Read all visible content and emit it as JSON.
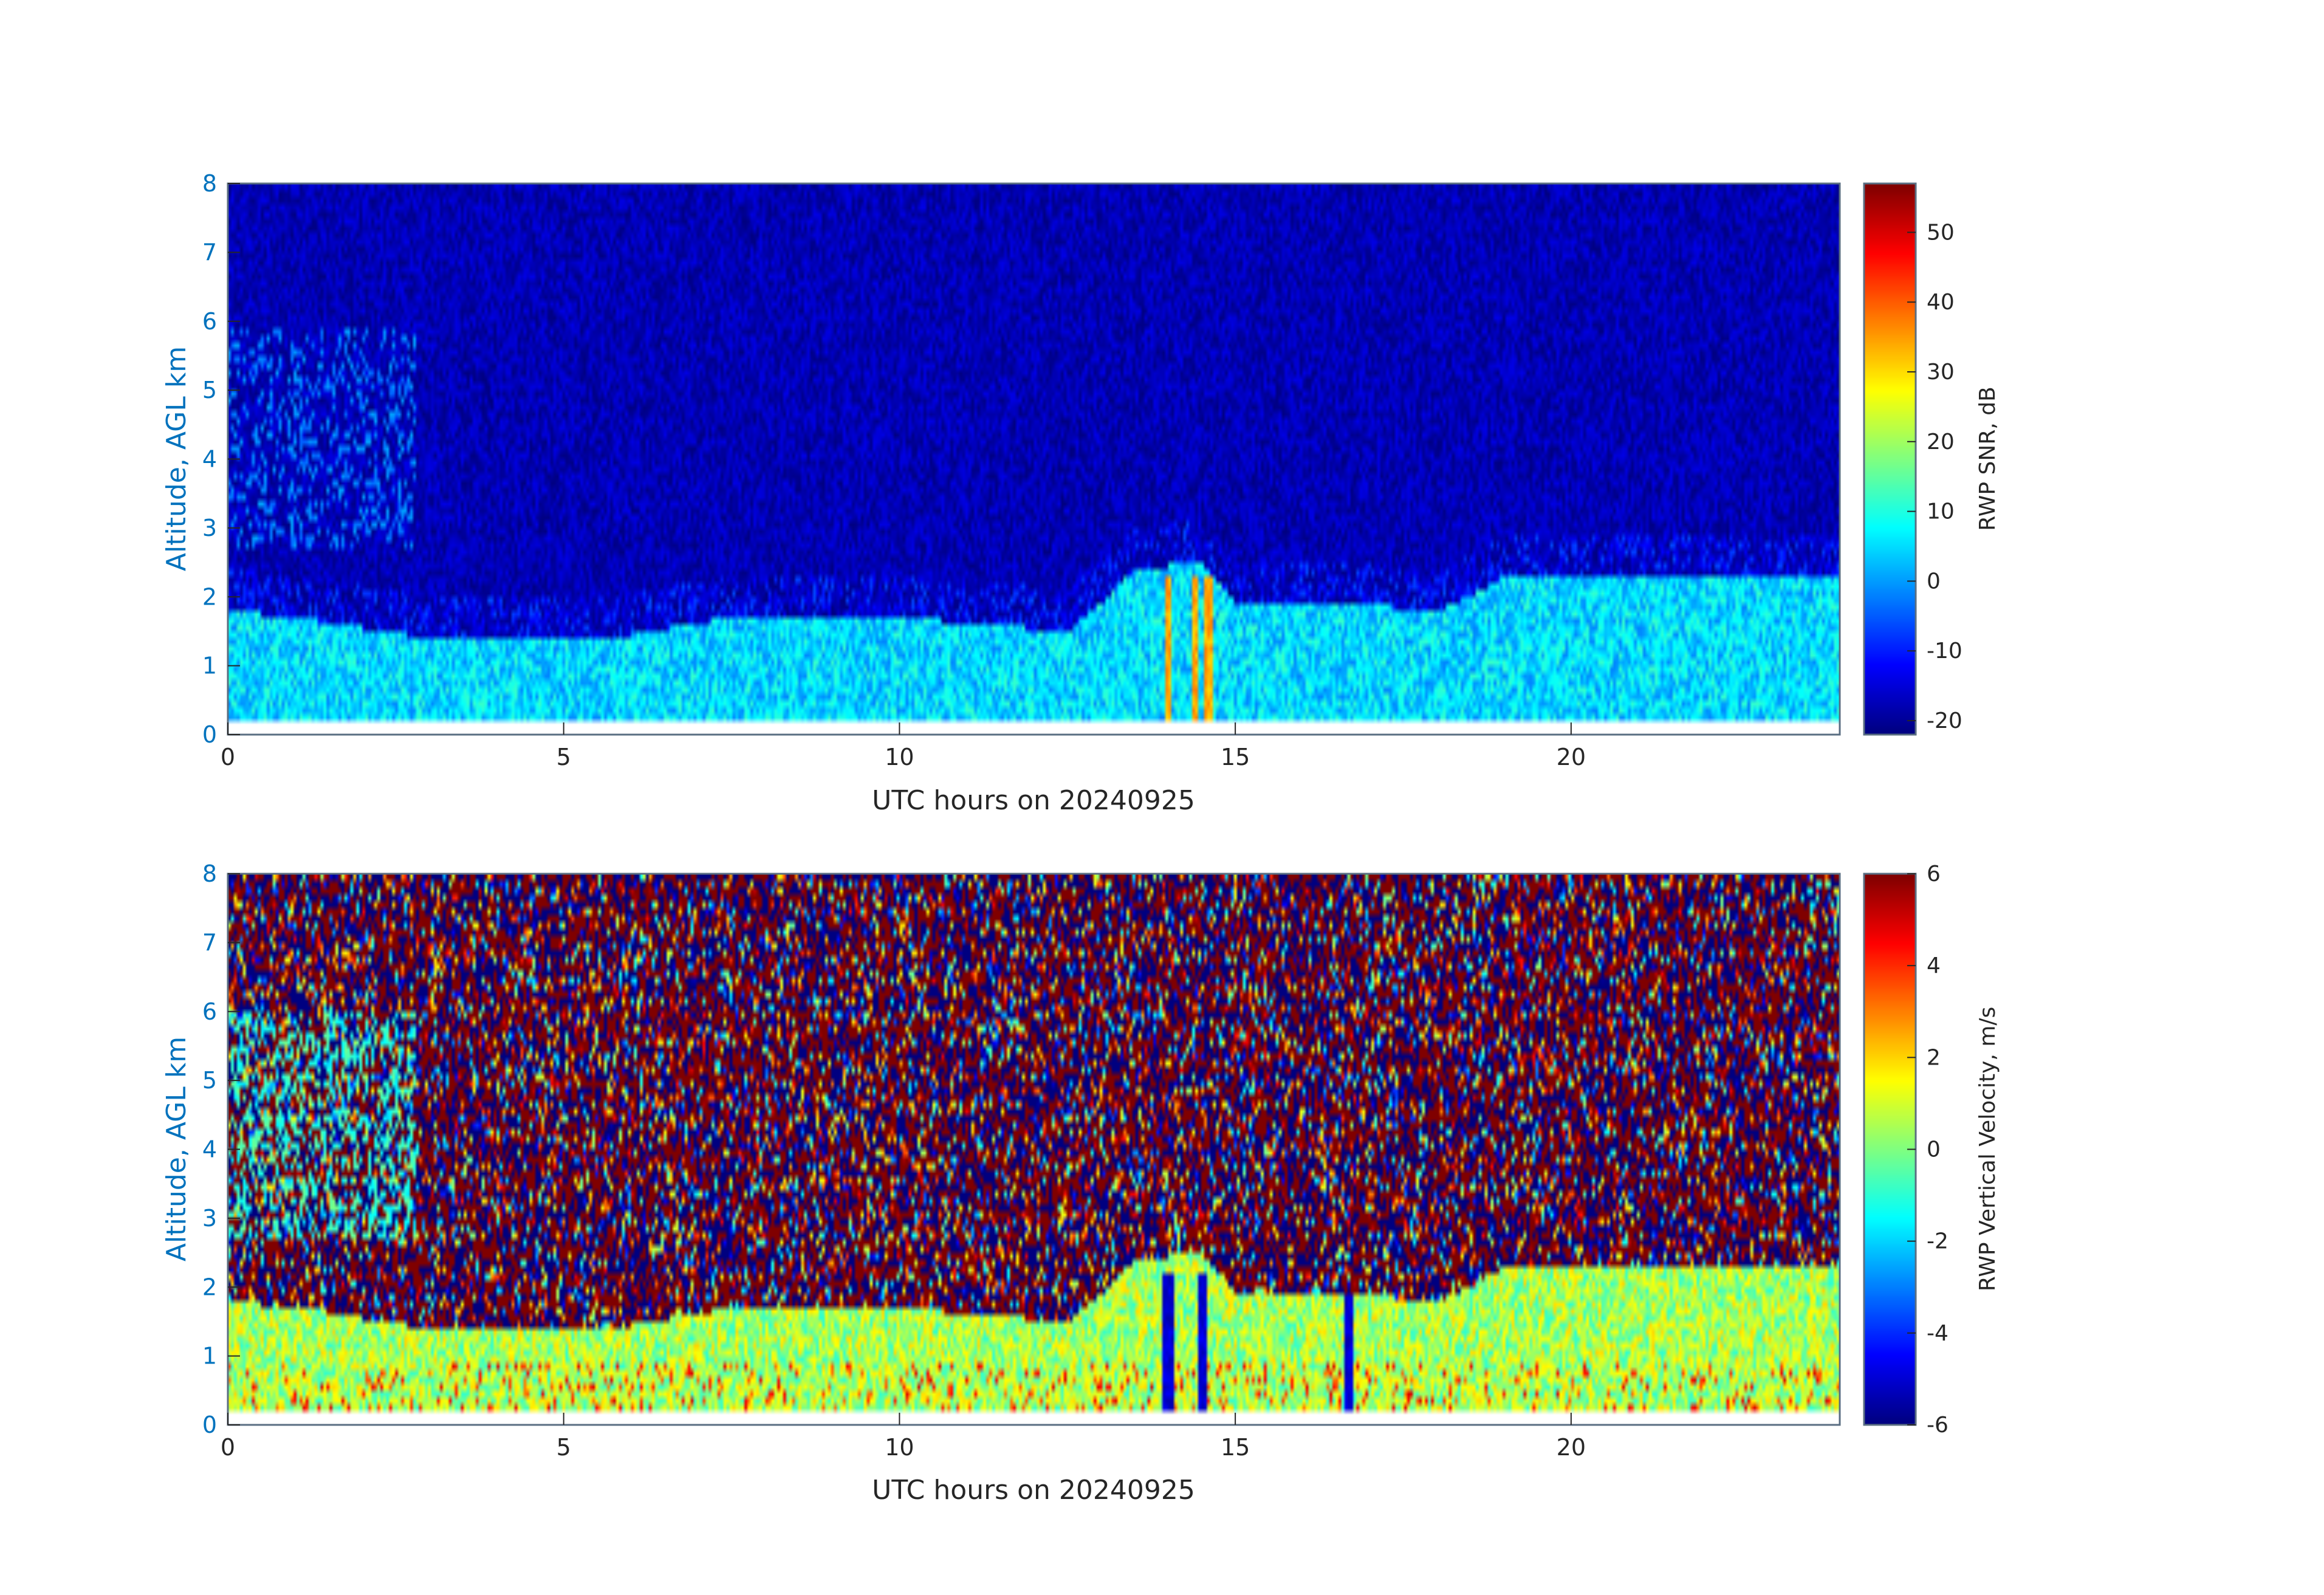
{
  "chart_data": [
    {
      "type": "heatmap",
      "xlabel": "UTC hours on 20240925",
      "ylabel": "Altitude, AGL km",
      "xlim": [
        0,
        24
      ],
      "ylim": [
        0,
        8
      ],
      "xticks": [
        "0",
        "5",
        "10",
        "15",
        "20"
      ],
      "yticks": [
        "0",
        "1",
        "2",
        "3",
        "4",
        "5",
        "6",
        "7",
        "8"
      ],
      "colormap": "jet",
      "colorbar": {
        "label": "RWP SNR, dB",
        "range": [
          -22,
          57
        ],
        "ticks": [
          "-20",
          "-10",
          "0",
          "10",
          "20",
          "30",
          "40",
          "50"
        ]
      },
      "data_features": {
        "valid_min_altitude_km": 0.25,
        "background_snr_dB": -18,
        "boundary_layer_top_km": [
          [
            0,
            1.8
          ],
          [
            1,
            1.7
          ],
          [
            3,
            1.4
          ],
          [
            6,
            1.45
          ],
          [
            7.5,
            1.7
          ],
          [
            10,
            1.7
          ],
          [
            12.5,
            1.5
          ],
          [
            13,
            1.9
          ],
          [
            13.5,
            2.4
          ],
          [
            14.5,
            2.5
          ],
          [
            15,
            1.9
          ],
          [
            16,
            1.95
          ],
          [
            18,
            1.8
          ],
          [
            18.5,
            2.0
          ],
          [
            19,
            2.3
          ],
          [
            24,
            2.3
          ]
        ],
        "boundary_layer_snr_dB": 5,
        "high_snr_spikes_hours": [
          14.0,
          14.4,
          14.6
        ]
      }
    },
    {
      "type": "heatmap",
      "xlabel": "UTC hours on 20240925",
      "ylabel": "Altitude, AGL km",
      "xlim": [
        0,
        24
      ],
      "ylim": [
        0,
        8
      ],
      "xticks": [
        "0",
        "5",
        "10",
        "15",
        "20"
      ],
      "yticks": [
        "0",
        "1",
        "2",
        "3",
        "4",
        "5",
        "6",
        "7",
        "8"
      ],
      "colormap": "jet",
      "colorbar": {
        "label": "RWP Vertical Velocity, m/s",
        "range": [
          -6,
          6
        ],
        "ticks": [
          "-6",
          "-4",
          "-2",
          "0",
          "2",
          "4",
          "6"
        ]
      },
      "data_features": {
        "valid_min_altitude_km": 0.25,
        "noise_above_boundary_layer_m_s": "random -6 to 6",
        "boundary_layer_velocity_m_s": [
          -1,
          2
        ],
        "downdraft_hours": [
          14.0,
          14.5,
          16.7
        ]
      }
    }
  ],
  "colors": {
    "y_axis_text": "#0072bd",
    "x_axis_text": "#262626",
    "axis_frame": "#5a6e82"
  }
}
